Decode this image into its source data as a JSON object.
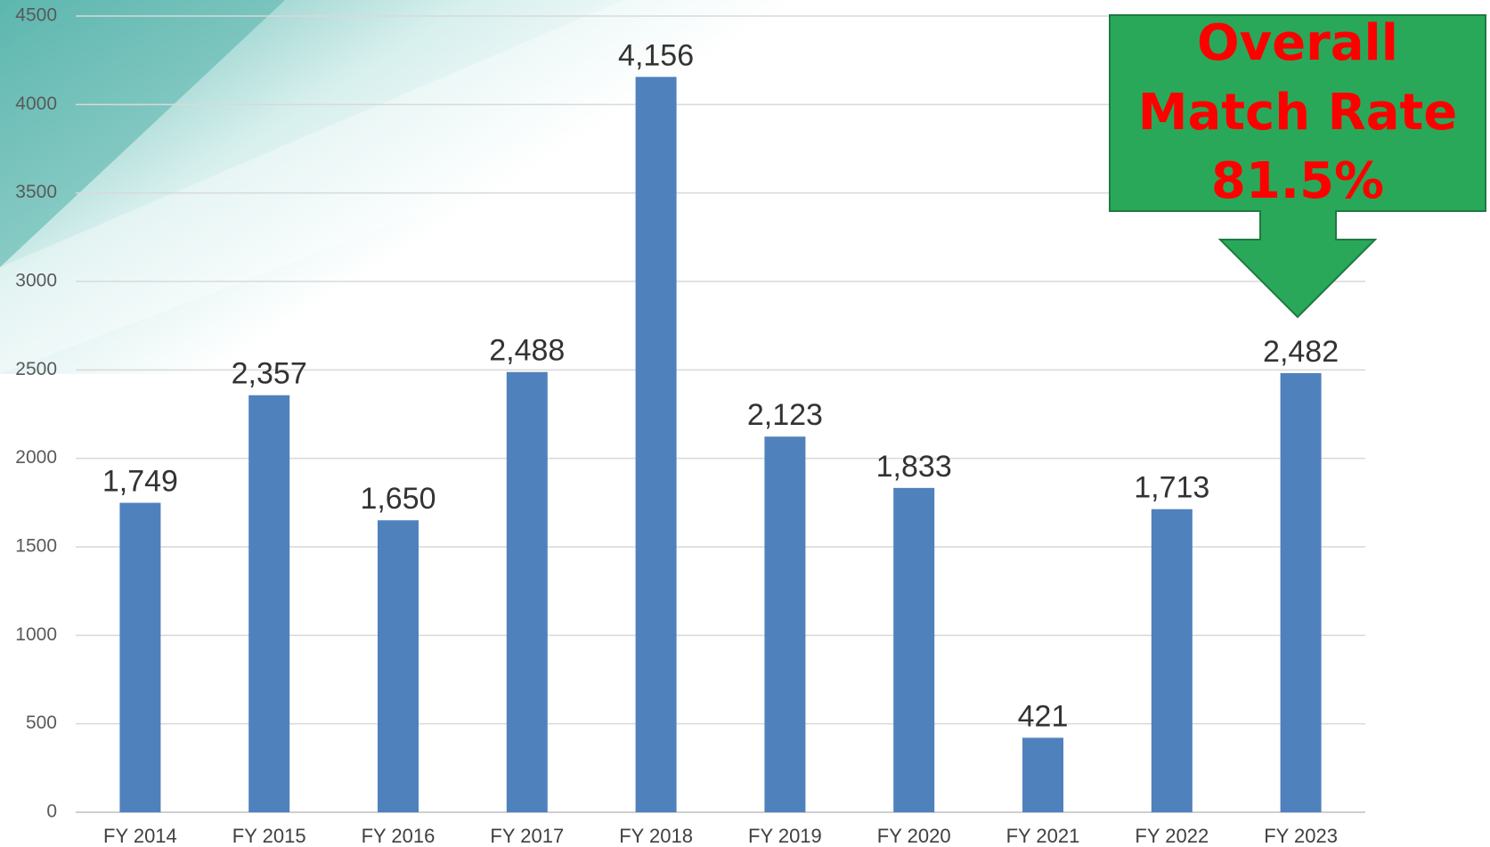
{
  "chart_data": {
    "type": "bar",
    "categories": [
      "FY 2014",
      "FY 2015",
      "FY 2016",
      "FY 2017",
      "FY 2018",
      "FY 2019",
      "FY 2020",
      "FY 2021",
      "FY 2022",
      "FY 2023"
    ],
    "values": [
      1749,
      2357,
      1650,
      2488,
      4156,
      2123,
      1833,
      421,
      1713,
      2482
    ],
    "value_labels": [
      "1,749",
      "2,357",
      "1,650",
      "2,488",
      "4,156",
      "2,123",
      "1,833",
      "421",
      "1,713",
      "2,482"
    ],
    "color": "#4f81bd",
    "ylim": [
      0,
      4500
    ],
    "yticks": [
      0,
      500,
      1000,
      1500,
      2000,
      2500,
      3000,
      3500,
      4000,
      4500
    ],
    "grid": true,
    "annotation": [
      "Overall",
      "Match Rate",
      "81.5%"
    ]
  }
}
